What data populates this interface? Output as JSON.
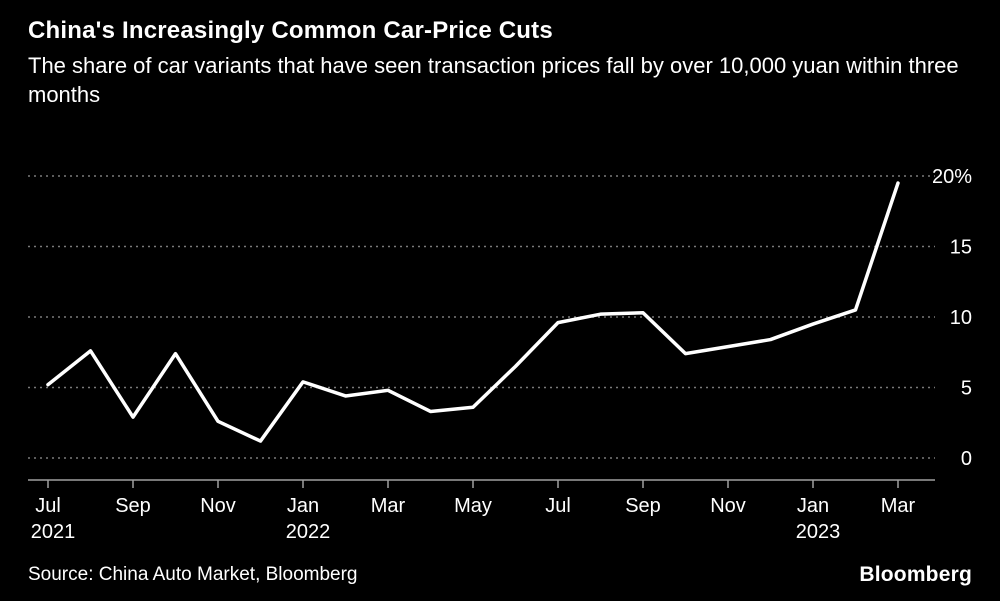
{
  "chart_data": {
    "type": "line",
    "title": "China's Increasingly Common Car-Price Cuts",
    "subtitle": "The share of car variants that have seen transaction prices fall by over 10,000 yuan within three months",
    "unit": "%",
    "ylim": [
      0,
      20
    ],
    "yticks": [
      0,
      5,
      10,
      15,
      20
    ],
    "ytick_labels": [
      "0",
      "5",
      "10",
      "15",
      "20%"
    ],
    "x": [
      "Jul 2021",
      "Aug 2021",
      "Sep 2021",
      "Oct 2021",
      "Nov 2021",
      "Dec 2021",
      "Jan 2022",
      "Feb 2022",
      "Mar 2022",
      "Apr 2022",
      "May 2022",
      "Jun 2022",
      "Jul 2022",
      "Aug 2022",
      "Sep 2022",
      "Oct 2022",
      "Nov 2022",
      "Dec 2022",
      "Jan 2023",
      "Feb 2023",
      "Mar 2023"
    ],
    "values": [
      5.2,
      7.6,
      2.9,
      7.4,
      2.6,
      1.2,
      5.4,
      4.4,
      4.8,
      3.3,
      3.6,
      6.5,
      9.6,
      10.2,
      10.3,
      7.4,
      7.9,
      8.4,
      9.5,
      10.5,
      19.5
    ],
    "xticks": [
      {
        "index": 0,
        "label": "Jul",
        "year": "2021"
      },
      {
        "index": 2,
        "label": "Sep"
      },
      {
        "index": 4,
        "label": "Nov"
      },
      {
        "index": 6,
        "label": "Jan",
        "year": "2022"
      },
      {
        "index": 8,
        "label": "Mar"
      },
      {
        "index": 10,
        "label": "May"
      },
      {
        "index": 12,
        "label": "Jul"
      },
      {
        "index": 14,
        "label": "Sep"
      },
      {
        "index": 16,
        "label": "Nov"
      },
      {
        "index": 18,
        "label": "Jan",
        "year": "2023"
      },
      {
        "index": 20,
        "label": "Mar"
      }
    ],
    "legend_position": "none",
    "grid": "horizontal-dotted",
    "line_color": "#ffffff",
    "grid_color": "#7a7a7a",
    "axis_color": "#a0a0a0",
    "background": "#000000"
  },
  "footer": {
    "source": "Source: China Auto Market, Bloomberg",
    "logo": "Bloomberg"
  }
}
